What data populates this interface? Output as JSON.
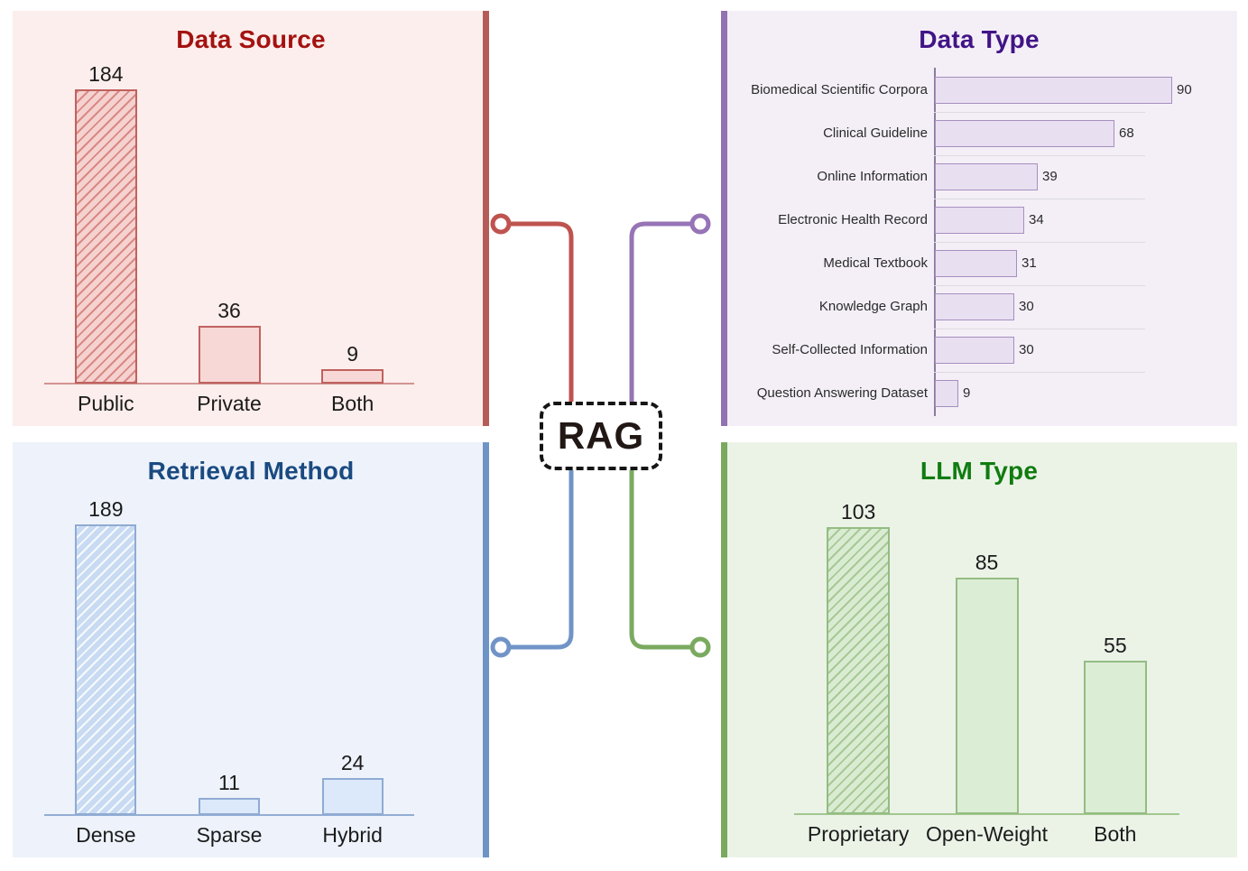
{
  "center": {
    "label": "RAG"
  },
  "connectors": {
    "data_source": "#bf534f",
    "data_type": "#9674b6",
    "retrieval_method": "#7194c7",
    "llm_type": "#7aaa5f"
  },
  "chart_data": [
    {
      "id": "data_source",
      "type": "bar",
      "orientation": "vertical",
      "title": "Data Source",
      "categories": [
        "Public",
        "Private",
        "Both"
      ],
      "values": [
        184,
        36,
        9
      ],
      "hatched_categories": [
        "Public"
      ],
      "value_labels_shown": true,
      "grid": false,
      "theme": {
        "title_color": "#a31210",
        "background": "#fceeec",
        "accent_strip": "#b65c58",
        "bar_fill": "#f8d8d6",
        "hatch_fill": "#f5d2cf",
        "hatch_line": "rgba(198,88,84,0.6)",
        "bar_border": "#c0625f",
        "baseline_color": "#d49391"
      }
    },
    {
      "id": "data_type",
      "type": "bar",
      "orientation": "horizontal",
      "title": "Data Type",
      "categories": [
        "Biomedical Scientific Corpora",
        "Clinical Guideline",
        "Online Information",
        "Electronic Health Record",
        "Medical Textbook",
        "Knowledge Graph",
        "Self-Collected Information",
        "Question Answering Dataset"
      ],
      "values": [
        90,
        68,
        39,
        34,
        31,
        30,
        30,
        9
      ],
      "value_labels_shown": true,
      "grid": true,
      "theme": {
        "title_color": "#411486",
        "background": "#f4eff7",
        "accent_strip": "#9173b1",
        "bar_fill": "#e8dff0",
        "bar_border": "#a68fc0",
        "axis_color": "#8a7c9c",
        "separator_color": "#dedae2"
      }
    },
    {
      "id": "retrieval_method",
      "type": "bar",
      "orientation": "vertical",
      "title": "Retrieval Method",
      "categories": [
        "Dense",
        "Sparse",
        "Hybrid"
      ],
      "values": [
        189,
        11,
        24
      ],
      "hatched_categories": [
        "Dense"
      ],
      "value_labels_shown": true,
      "grid": false,
      "theme": {
        "title_color": "#1a4a80",
        "background": "#edf2fb",
        "accent_strip": "#6e94c6",
        "bar_fill": "#dce9fa",
        "hatch_fill": "#c9dbf2",
        "hatch_line": "rgba(255,255,255,0.85)",
        "bar_border": "#8fabd3",
        "baseline_color": "#93add4"
      }
    },
    {
      "id": "llm_type",
      "type": "bar",
      "orientation": "vertical",
      "title": "LLM Type",
      "categories": [
        "Proprietary",
        "Open-Weight",
        "Both"
      ],
      "values": [
        103,
        85,
        55
      ],
      "hatched_categories": [
        "Proprietary"
      ],
      "value_labels_shown": true,
      "grid": false,
      "theme": {
        "title_color": "#107c10",
        "background": "#ebf3e7",
        "accent_strip": "#79a95e",
        "bar_fill": "#dcedd6",
        "hatch_fill": "#d9ecd2",
        "hatch_line": "rgba(120,165,90,0.5)",
        "bar_border": "#94bc83",
        "baseline_color": "#a3c78f"
      }
    }
  ]
}
